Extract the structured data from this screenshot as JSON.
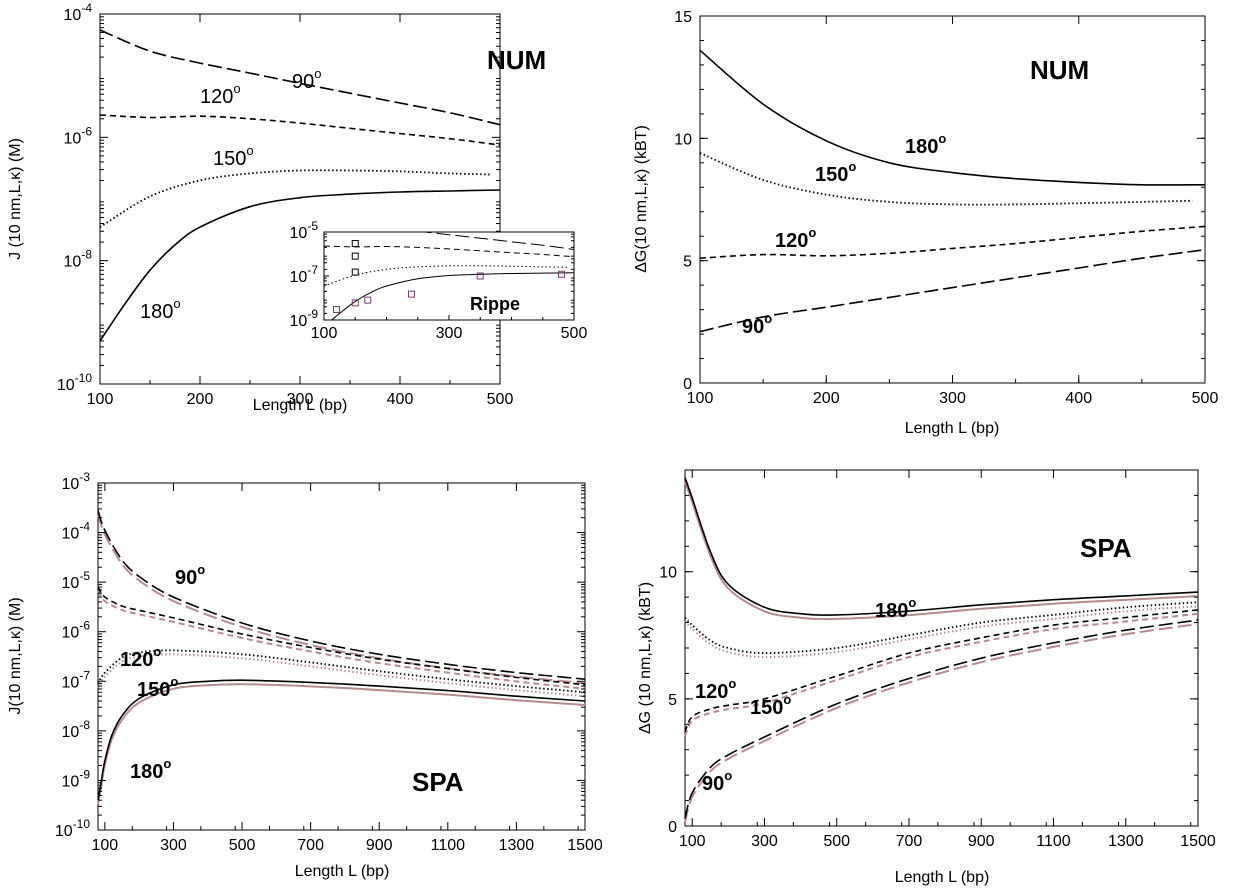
{
  "chart_data": [
    {
      "type": "line",
      "panel": "top-left",
      "method_label": "NUM",
      "xlabel": "Length L (bp)",
      "ylabel": "J (10 nm,L,κ) (M)",
      "xlim": [
        100,
        500
      ],
      "ylim": [
        1e-10,
        0.0001
      ],
      "yscale": "log",
      "xticks": [
        "100",
        "200",
        "300",
        "400",
        "500"
      ],
      "yticks": [
        "10^-10",
        "10^-8",
        "10^-6",
        "10^-4"
      ],
      "series": [
        {
          "name": "90°",
          "dash": "long",
          "x": [
            100,
            150,
            200,
            250,
            300,
            350,
            400,
            450,
            500
          ],
          "y": [
            5.5e-05,
            2.5e-05,
            1.6e-05,
            1.1e-05,
            7.5e-06,
            5.2e-06,
            3.6e-06,
            2.5e-06,
            1.6e-06
          ]
        },
        {
          "name": "120°",
          "dash": "short",
          "x": [
            100,
            150,
            200,
            250,
            300,
            350,
            400,
            450,
            500
          ],
          "y": [
            2.3e-06,
            2.1e-06,
            2.2e-06,
            2e-06,
            1.7e-06,
            1.4e-06,
            1.15e-06,
            9.5e-07,
            7.5e-07
          ]
        },
        {
          "name": "150°",
          "dash": "dot",
          "x": [
            100,
            150,
            200,
            250,
            300,
            350,
            400,
            450,
            490
          ],
          "y": [
            3.5e-08,
            1.1e-07,
            2e-07,
            2.6e-07,
            2.9e-07,
            2.9e-07,
            2.8e-07,
            2.6e-07,
            2.5e-07
          ]
        },
        {
          "name": "180°",
          "dash": "solid",
          "x": [
            100,
            125,
            150,
            175,
            200,
            250,
            300,
            350,
            400,
            450,
            500
          ],
          "y": [
            5e-10,
            2e-09,
            7e-09,
            1.8e-08,
            3.5e-08,
            7.5e-08,
            1.05e-07,
            1.2e-07,
            1.3e-07,
            1.35e-07,
            1.4e-07
          ]
        }
      ],
      "inset": {
        "label": "Rippe",
        "xlim": [
          100,
          500
        ],
        "ylim": [
          1e-09,
          1e-05
        ],
        "xticks": [
          "100",
          "300",
          "500"
        ],
        "yticks": [
          "10^-9",
          "10^-7",
          "10^-5"
        ],
        "points_purple": [
          [
            120,
            3e-09
          ],
          [
            150,
            6e-09
          ],
          [
            170,
            8e-09
          ],
          [
            240,
            1.5e-08
          ],
          [
            350,
            1e-07
          ],
          [
            480,
            1.2e-07
          ]
        ],
        "points_black": [
          [
            150,
            3e-06
          ],
          [
            150,
            8e-07
          ],
          [
            150,
            1.5e-07
          ]
        ]
      }
    },
    {
      "type": "line",
      "panel": "top-right",
      "method_label": "NUM",
      "xlabel": "Length L (bp)",
      "ylabel": "ΔG(10 nm,L,κ) (kBT)",
      "xlim": [
        100,
        500
      ],
      "ylim": [
        0,
        15
      ],
      "xticks": [
        "100",
        "200",
        "300",
        "400",
        "500"
      ],
      "yticks": [
        "0",
        "5",
        "10",
        "15"
      ],
      "series": [
        {
          "name": "180°",
          "dash": "solid",
          "x": [
            100,
            150,
            200,
            250,
            300,
            350,
            400,
            450,
            500
          ],
          "y": [
            13.6,
            11.4,
            9.9,
            9.0,
            8.6,
            8.35,
            8.2,
            8.1,
            8.1
          ]
        },
        {
          "name": "150°",
          "dash": "dot",
          "x": [
            100,
            150,
            200,
            250,
            300,
            350,
            400,
            450,
            490
          ],
          "y": [
            9.4,
            8.3,
            7.7,
            7.4,
            7.3,
            7.3,
            7.35,
            7.4,
            7.45
          ]
        },
        {
          "name": "120°",
          "dash": "short",
          "x": [
            100,
            150,
            200,
            250,
            300,
            350,
            400,
            450,
            500
          ],
          "y": [
            5.1,
            5.25,
            5.2,
            5.3,
            5.5,
            5.7,
            5.95,
            6.2,
            6.4
          ]
        },
        {
          "name": "90°",
          "dash": "long",
          "x": [
            100,
            150,
            200,
            250,
            300,
            350,
            400,
            450,
            500
          ],
          "y": [
            2.1,
            2.7,
            3.1,
            3.5,
            3.9,
            4.3,
            4.7,
            5.1,
            5.45
          ]
        }
      ]
    },
    {
      "type": "line",
      "panel": "bottom-left",
      "method_label": "SPA",
      "xlabel": "Length L (bp)",
      "ylabel": "J(10 nm,L,κ) (M)",
      "xlim": [
        80,
        1500
      ],
      "ylim": [
        1e-10,
        0.001
      ],
      "yscale": "log",
      "xticks": [
        "100",
        "300",
        "500",
        "700",
        "900",
        "1100",
        "1300",
        "1500"
      ],
      "yticks": [
        "10^-10",
        "10^-9",
        "10^-8",
        "10^-7",
        "10^-6",
        "10^-5",
        "10^-4",
        "10^-3"
      ],
      "series": [
        {
          "name": "90°",
          "dash": "long",
          "x": [
            80,
            100,
            150,
            200,
            300,
            500,
            700,
            900,
            1100,
            1300,
            1500
          ],
          "y": [
            0.00028,
            0.00011,
            2.8e-05,
            1.3e-05,
            5e-06,
            1.5e-06,
            6.5e-07,
            3.5e-07,
            2.2e-07,
            1.5e-07,
            1.1e-07
          ]
        },
        {
          "name": "120°",
          "dash": "short",
          "x": [
            80,
            100,
            150,
            200,
            300,
            500,
            700,
            900,
            1100,
            1300,
            1500
          ],
          "y": [
            8e-06,
            5e-06,
            3.3e-06,
            2.7e-06,
            1.9e-06,
            9e-07,
            4.8e-07,
            2.8e-07,
            1.8e-07,
            1.2e-07,
            8.5e-08
          ]
        },
        {
          "name": "150°",
          "dash": "dot",
          "x": [
            80,
            100,
            150,
            200,
            300,
            500,
            700,
            900,
            1100,
            1300,
            1500
          ],
          "y": [
            9e-08,
            1.5e-07,
            3e-07,
            3.8e-07,
            4.2e-07,
            3.5e-07,
            2.4e-07,
            1.6e-07,
            1.1e-07,
            8e-08,
            6e-08
          ]
        },
        {
          "name": "180°",
          "dash": "solid",
          "x": [
            80,
            90,
            100,
            120,
            150,
            200,
            300,
            400,
            500,
            700,
            900,
            1100,
            1300,
            1500
          ],
          "y": [
            4e-10,
            1e-09,
            2.5e-09,
            8e-09,
            2e-08,
            4.5e-08,
            8.5e-08,
            1e-07,
            1.05e-07,
            9.5e-08,
            8e-08,
            6.5e-08,
            5e-08,
            4e-08
          ]
        }
      ]
    },
    {
      "type": "line",
      "panel": "bottom-right",
      "method_label": "SPA",
      "xlabel": "Length L (bp)",
      "ylabel": "ΔG (10 nm,L,κ) (kBT)",
      "xlim": [
        80,
        1500
      ],
      "ylim": [
        0,
        14
      ],
      "xticks": [
        "100",
        "300",
        "500",
        "700",
        "900",
        "1100",
        "1300",
        "1500"
      ],
      "yticks": [
        "0",
        "5",
        "10"
      ],
      "series": [
        {
          "name": "180°",
          "dash": "solid",
          "x": [
            80,
            100,
            150,
            200,
            300,
            400,
            500,
            700,
            900,
            1100,
            1300,
            1500
          ],
          "y": [
            13.7,
            12.9,
            10.8,
            9.5,
            8.6,
            8.35,
            8.3,
            8.45,
            8.7,
            8.9,
            9.05,
            9.2
          ]
        },
        {
          "name": "150°",
          "dash": "dot",
          "x": [
            80,
            100,
            150,
            200,
            300,
            500,
            700,
            900,
            1100,
            1300,
            1500
          ],
          "y": [
            8.2,
            7.9,
            7.3,
            7.0,
            6.8,
            7.0,
            7.5,
            8.0,
            8.3,
            8.6,
            8.8
          ]
        },
        {
          "name": "120°",
          "dash": "short",
          "x": [
            80,
            100,
            150,
            200,
            300,
            500,
            700,
            900,
            1100,
            1300,
            1500
          ],
          "y": [
            3.7,
            4.3,
            4.6,
            4.75,
            5.0,
            5.9,
            6.8,
            7.4,
            7.9,
            8.2,
            8.5
          ]
        },
        {
          "name": "90°",
          "dash": "long",
          "x": [
            80,
            100,
            150,
            200,
            300,
            500,
            700,
            900,
            1100,
            1300,
            1500
          ],
          "y": [
            0.3,
            1.3,
            2.3,
            2.8,
            3.5,
            4.8,
            5.8,
            6.6,
            7.2,
            7.7,
            8.1
          ]
        }
      ]
    }
  ],
  "labels": {
    "tl_90": "90",
    "tl_120": "120",
    "tl_150": "150",
    "tl_180": "180",
    "tr_180": "180",
    "tr_150": "150",
    "tr_120": "120",
    "tr_90": "90",
    "bl_90": "90",
    "bl_120": "120",
    "bl_150": "150",
    "bl_180": "180",
    "br_180": "180",
    "br_150": "150",
    "br_120": "120",
    "br_90": "90",
    "deg": "o"
  }
}
